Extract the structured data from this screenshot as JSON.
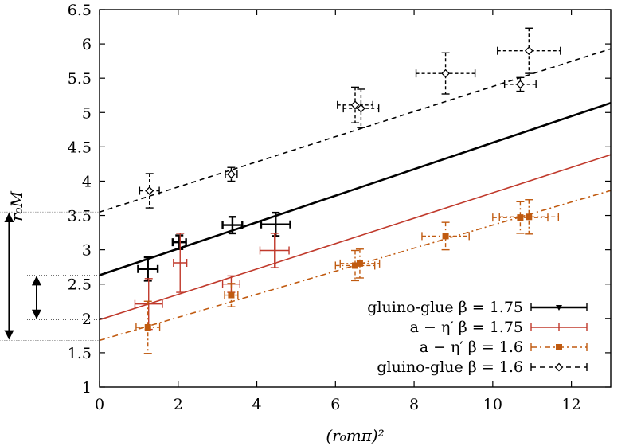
{
  "chart_data": {
    "type": "scatter",
    "title": "",
    "xlabel": "(r₀mπ)²",
    "ylabel": "r₀M",
    "xlim": [
      0,
      13
    ],
    "ylim": [
      1,
      6.5
    ],
    "xticks": [
      "0",
      "2",
      "4",
      "6",
      "8",
      "10",
      "12"
    ],
    "xtick_values": [
      0,
      2,
      4,
      6,
      8,
      10,
      12
    ],
    "yticks": [
      "1",
      "1.5",
      "2",
      "2.5",
      "3",
      "3.5",
      "4",
      "4.5",
      "5",
      "5.5",
      "6",
      "6.5"
    ],
    "ytick_values": [
      1,
      1.5,
      2,
      2.5,
      3,
      3.5,
      4,
      4.5,
      5,
      5.5,
      6,
      6.5
    ],
    "legend_position": "bottom-right",
    "series": [
      {
        "name": "gluino-glue β = 1.75",
        "color": "#000000",
        "marker": "none",
        "line_style": "solid",
        "fit": {
          "intercept": 2.63,
          "slope": 0.193
        },
        "points": [
          {
            "x": 1.23,
            "y": 2.72,
            "xerr": 0.25,
            "yerr": 0.17
          },
          {
            "x": 2.03,
            "y": 3.11,
            "xerr": 0.17,
            "yerr": 0.1
          },
          {
            "x": 3.38,
            "y": 3.36,
            "xerr": 0.25,
            "yerr": 0.12
          },
          {
            "x": 4.48,
            "y": 3.37,
            "xerr": 0.37,
            "yerr": 0.17
          }
        ]
      },
      {
        "name": "a − η′ β = 1.75",
        "color": "#c0392b",
        "marker": "none",
        "line_style": "solid",
        "fit": {
          "intercept": 1.98,
          "slope": 0.185
        },
        "points": [
          {
            "x": 1.25,
            "y": 2.21,
            "xerr": 0.35,
            "yerr": 0.37
          },
          {
            "x": 2.05,
            "y": 2.81,
            "xerr": 0.17,
            "yerr": 0.43
          },
          {
            "x": 3.35,
            "y": 2.5,
            "xerr": 0.22,
            "yerr": 0.12
          },
          {
            "x": 4.45,
            "y": 2.99,
            "xerr": 0.37,
            "yerr": 0.25
          }
        ]
      },
      {
        "name": "a − η′ β = 1.6",
        "color": "#c05a10",
        "marker": "square",
        "line_style": "dash-dot",
        "fit": {
          "intercept": 1.68,
          "slope": 0.168
        },
        "points": [
          {
            "x": 1.23,
            "y": 1.87,
            "xerr": 0.3,
            "yerr": 0.38
          },
          {
            "x": 3.35,
            "y": 2.34,
            "xerr": 0.17,
            "yerr": 0.17
          },
          {
            "x": 6.5,
            "y": 2.77,
            "xerr": 0.5,
            "yerr": 0.22
          },
          {
            "x": 6.62,
            "y": 2.8,
            "xerr": 0.5,
            "yerr": 0.21
          },
          {
            "x": 8.8,
            "y": 3.2,
            "xerr": 0.6,
            "yerr": 0.2
          },
          {
            "x": 10.7,
            "y": 3.47,
            "xerr": 0.7,
            "yerr": 0.23
          },
          {
            "x": 10.92,
            "y": 3.48,
            "xerr": 0.75,
            "yerr": 0.25
          }
        ]
      },
      {
        "name": "gluino-glue β = 1.6",
        "color": "#000000",
        "marker": "diamond",
        "line_style": "dashed",
        "fit": {
          "intercept": 3.55,
          "slope": 0.183
        },
        "points": [
          {
            "x": 1.27,
            "y": 3.86,
            "xerr": 0.25,
            "yerr": 0.25
          },
          {
            "x": 3.35,
            "y": 4.1,
            "xerr": 0.15,
            "yerr": 0.1
          },
          {
            "x": 6.5,
            "y": 5.11,
            "xerr": 0.45,
            "yerr": 0.26
          },
          {
            "x": 6.65,
            "y": 5.06,
            "xerr": 0.45,
            "yerr": 0.28
          },
          {
            "x": 8.8,
            "y": 5.57,
            "xerr": 0.75,
            "yerr": 0.3
          },
          {
            "x": 10.7,
            "y": 5.41,
            "xerr": 0.4,
            "yerr": 0.1
          },
          {
            "x": 10.92,
            "y": 5.9,
            "xerr": 0.8,
            "yerr": 0.33
          }
        ]
      }
    ],
    "annotations": [
      {
        "type": "double-arrow",
        "from_y": 3.55,
        "to_y": 1.68,
        "x_data": -2.3
      },
      {
        "type": "double-arrow",
        "from_y": 2.63,
        "to_y": 1.98,
        "x_data": -1.6
      }
    ]
  }
}
